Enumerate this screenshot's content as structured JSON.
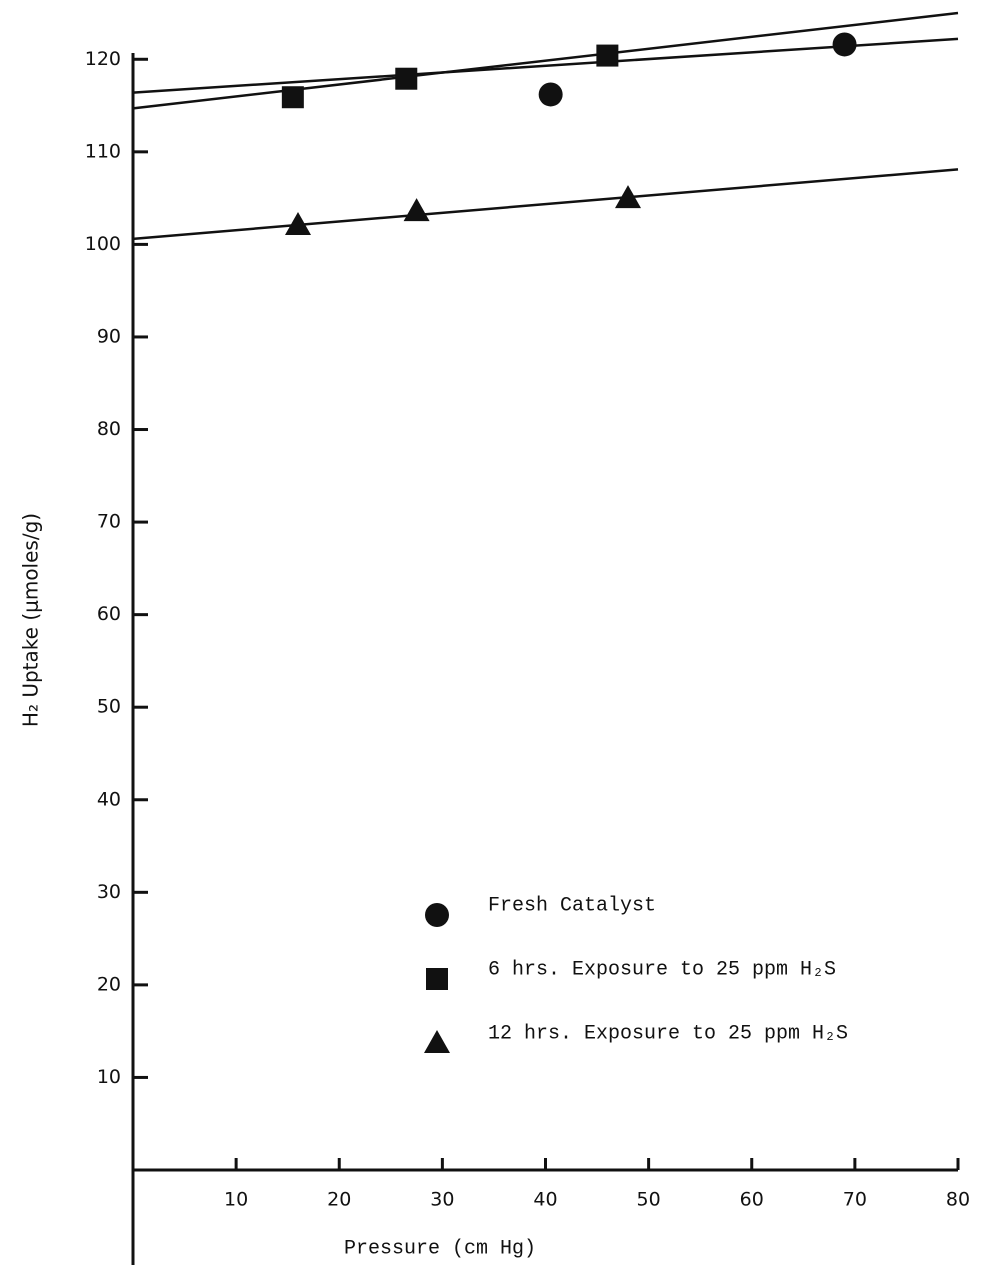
{
  "chart_data": {
    "type": "scatter",
    "x_label": "Pressure (cm Hg)",
    "y_label": "H₂ Uptake (μmoles/g)",
    "xlim": [
      0,
      80
    ],
    "ylim": [
      0,
      125
    ],
    "xticks": [
      10,
      20,
      30,
      40,
      50,
      60,
      70,
      80
    ],
    "yticks": [
      10,
      20,
      30,
      40,
      50,
      60,
      70,
      80,
      90,
      100,
      110,
      120
    ],
    "color": "#111111",
    "series": [
      {
        "name": "Fresh Catalyst",
        "marker": "circle",
        "x": [
          40.5,
          69
        ],
        "values": [
          116.2,
          121.6
        ],
        "fit": {
          "x": [
            0,
            80
          ],
          "y": [
            116.4,
            122.2
          ]
        }
      },
      {
        "name": "6 hrs. Exposure to 25 ppm H₂S",
        "marker": "square",
        "x": [
          15.5,
          26.5,
          46
        ],
        "values": [
          115.9,
          117.9,
          120.4
        ],
        "fit": {
          "x": [
            0,
            80
          ],
          "y": [
            114.7,
            125
          ]
        }
      },
      {
        "name": "12 hrs. Exposure to 25 ppm H₂S",
        "marker": "triangle",
        "x": [
          16,
          27.5,
          48
        ],
        "values": [
          102.1,
          103.6,
          105
        ],
        "fit": {
          "x": [
            0,
            80
          ],
          "y": [
            100.6,
            108.1
          ]
        }
      }
    ]
  }
}
